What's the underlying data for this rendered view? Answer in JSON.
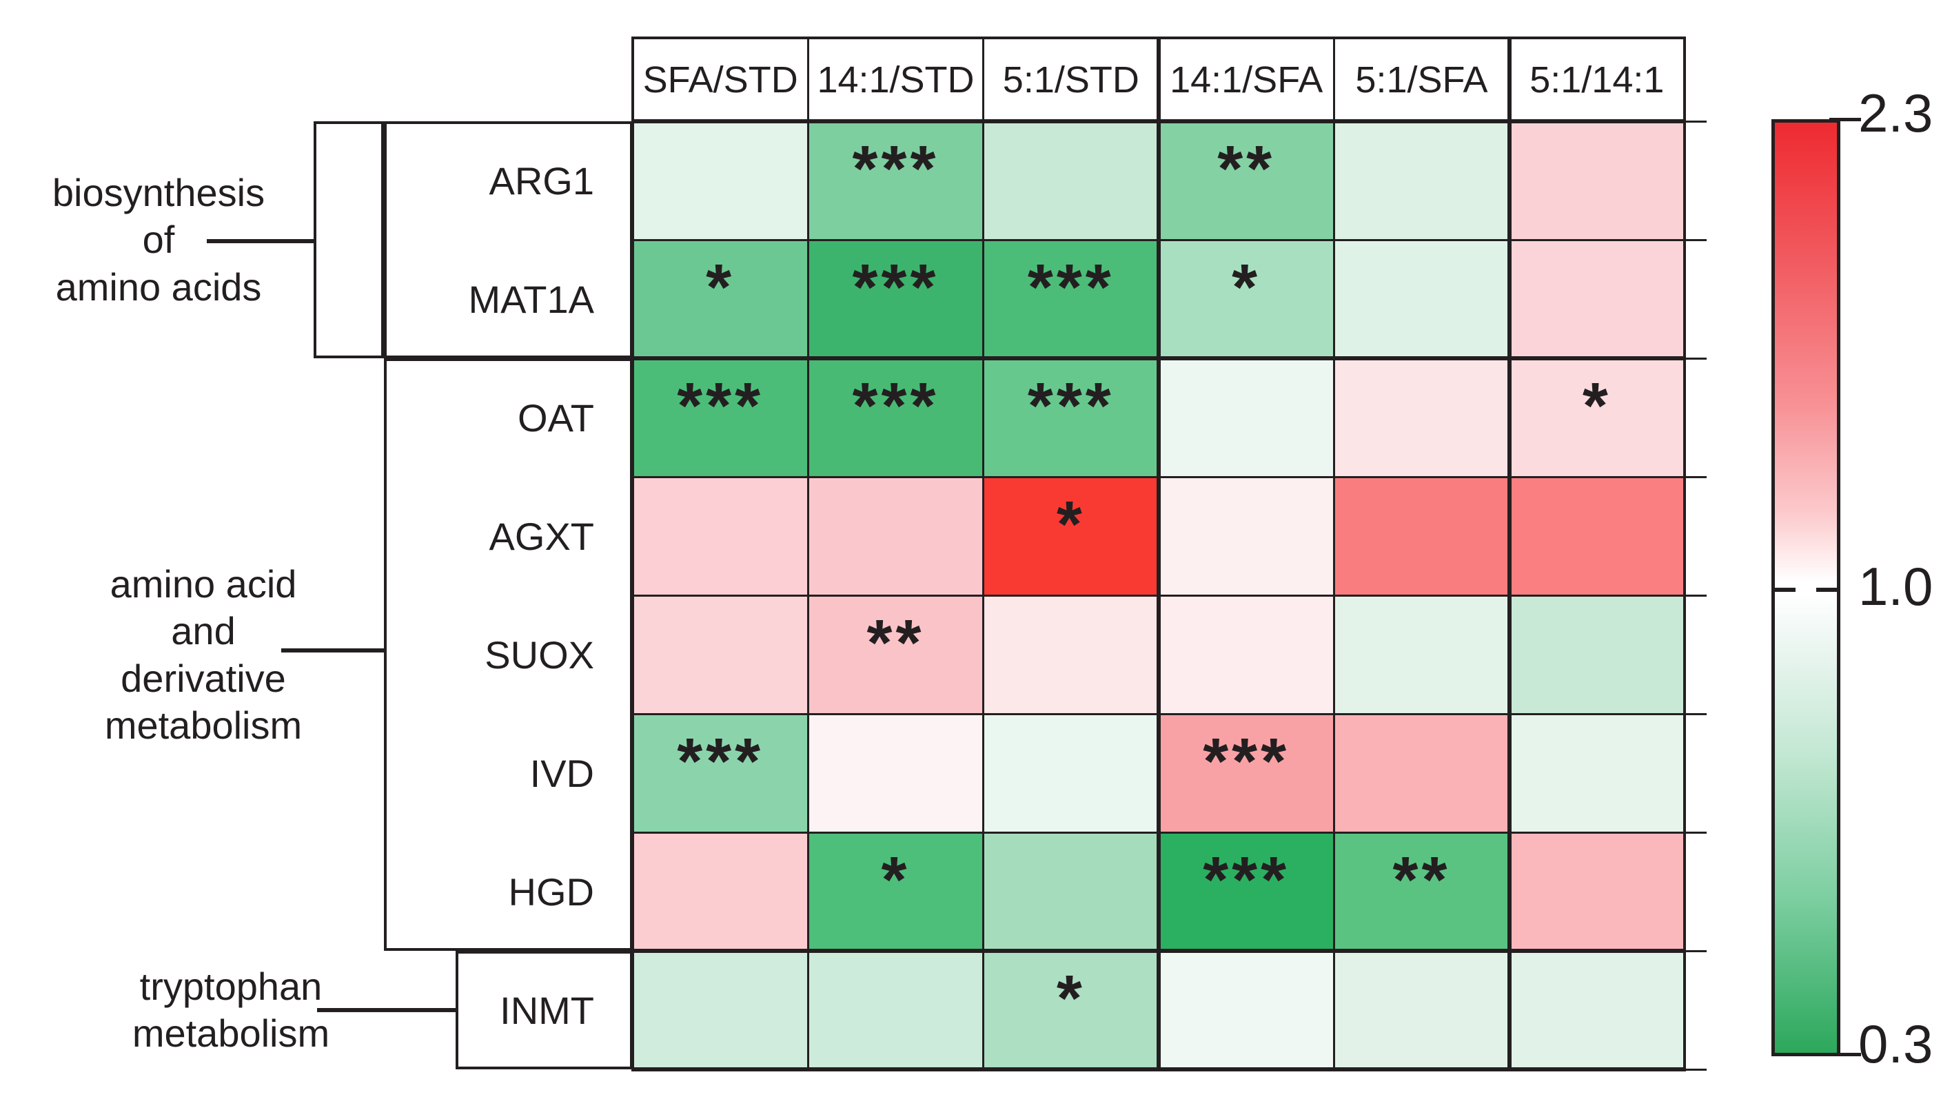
{
  "chart_data": {
    "type": "heatmap",
    "title": "",
    "xlabel": "",
    "ylabel": "",
    "legend_position": "right-colorbar",
    "columns": [
      "SFA/STD",
      "14:1/STD",
      "5:1/STD",
      "14:1/SFA",
      "5:1/SFA",
      "5:1/14:1"
    ],
    "rows": [
      {
        "gene": "ARG1",
        "group": "biosynthesis of amino acids",
        "values": [
          0.95,
          0.62,
          0.85,
          0.64,
          0.92,
          1.24
        ],
        "colors": [
          "#e3f4ea",
          "#7ecfa0",
          "#c8e9d6",
          "#84d1a4",
          "#ddf1e5",
          "#fad2d6"
        ],
        "significance": [
          "",
          "***",
          "",
          "**",
          "",
          ""
        ]
      },
      {
        "gene": "MAT1A",
        "group": "biosynthesis of amino acids",
        "values": [
          0.57,
          0.41,
          0.45,
          0.73,
          0.92,
          1.24
        ],
        "colors": [
          "#6cc892",
          "#3db46d",
          "#4cbc79",
          "#a8dfc0",
          "#dff2e8",
          "#fad4d8"
        ],
        "significance": [
          "*",
          "***",
          "***",
          "*",
          "",
          ""
        ]
      },
      {
        "gene": "OAT",
        "group": "amino acid and derivative metabolism",
        "values": [
          0.45,
          0.44,
          0.58,
          0.96,
          1.13,
          1.18
        ],
        "colors": [
          "#4cbd79",
          "#48ba74",
          "#67c88e",
          "#edf7f2",
          "#fce5e7",
          "#fbdbde"
        ],
        "significance": [
          "***",
          "***",
          "***",
          "",
          "",
          "*"
        ]
      },
      {
        "gene": "AGXT",
        "group": "amino acid and derivative metabolism",
        "values": [
          1.26,
          1.3,
          2.24,
          1.08,
          1.72,
          1.72
        ],
        "colors": [
          "#fbcfd3",
          "#fac8cc",
          "#f93a33",
          "#fdf0f1",
          "#f97d7f",
          "#f97f81"
        ],
        "significance": [
          "",
          "",
          "*",
          "",
          "",
          ""
        ]
      },
      {
        "gene": "SUOX",
        "group": "amino acid and derivative metabolism",
        "values": [
          1.22,
          1.33,
          1.1,
          1.07,
          0.93,
          0.85
        ],
        "colors": [
          "#fbd4d7",
          "#f9c3c7",
          "#fce7e9",
          "#fdedee",
          "#e3f3ea",
          "#c9e9d7"
        ],
        "significance": [
          "",
          "**",
          "",
          "",
          "",
          ""
        ]
      },
      {
        "gene": "IVD",
        "group": "amino acid and derivative metabolism",
        "values": [
          0.65,
          1.05,
          0.95,
          1.52,
          1.43,
          0.93
        ],
        "colors": [
          "#8bd4ab",
          "#fdf3f5",
          "#eaf6f0",
          "#f9a2a6",
          "#fab2b6",
          "#e6f4ec"
        ],
        "significance": [
          "***",
          "",
          "",
          "***",
          "",
          ""
        ]
      },
      {
        "gene": "HGD",
        "group": "amino acid and derivative metabolism",
        "values": [
          1.26,
          0.47,
          0.72,
          0.36,
          0.51,
          1.39
        ],
        "colors": [
          "#fbcdd1",
          "#4ebe7b",
          "#a5ddbc",
          "#2bb061",
          "#5ac382",
          "#fab8bc"
        ],
        "significance": [
          "",
          "*",
          "",
          "***",
          "**",
          ""
        ]
      },
      {
        "gene": "INMT",
        "group": "tryptophan metabolism",
        "values": [
          0.86,
          0.86,
          0.75,
          0.97,
          0.91,
          0.91
        ],
        "colors": [
          "#cfecdc",
          "#cdebda",
          "#addfc3",
          "#f0f8f4",
          "#e2f2e9",
          "#e1f2e8"
        ],
        "significance": [
          "",
          "",
          "*",
          "",
          "",
          ""
        ]
      }
    ],
    "row_groups": [
      {
        "label_lines": [
          "biosynthesis",
          "of",
          "amino acids"
        ],
        "genes": [
          "ARG1",
          "MAT1A"
        ]
      },
      {
        "label_lines": [
          "amino acid",
          "and",
          "derivative",
          "metabolism"
        ],
        "genes": [
          "OAT",
          "AGXT",
          "SUOX",
          "IVD",
          "HGD"
        ]
      },
      {
        "label_lines": [
          "tryptophan",
          "metabolism"
        ],
        "genes": [
          "INMT"
        ]
      }
    ],
    "colorbar": {
      "top_label": "2.3",
      "mid_label": "1.0",
      "bottom_label": "0.3",
      "max_color": "#ee2b31",
      "mid_color": "#ffffff",
      "min_color": "#2ca85c",
      "range": [
        0.3,
        2.3
      ],
      "midpoint": 1.0
    },
    "significance_legend_note": ""
  }
}
